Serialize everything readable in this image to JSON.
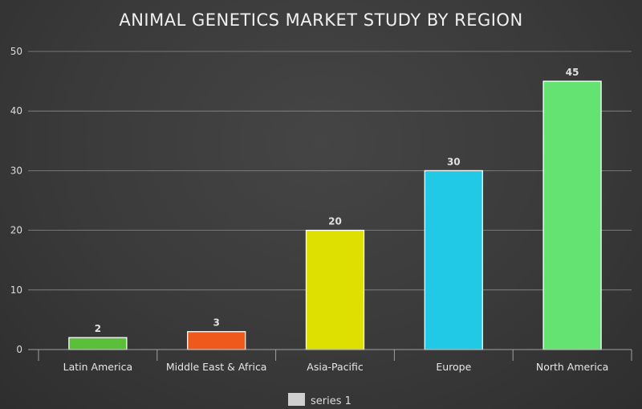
{
  "chart_data": {
    "type": "bar",
    "title": "ANIMAL GENETICS MARKET STUDY BY REGION",
    "categories": [
      "Latin America",
      "Middle East & Africa",
      "Asia-Pacific",
      "Europe",
      "North America"
    ],
    "series": [
      {
        "name": "series 1",
        "values": [
          2,
          3,
          20,
          30,
          45
        ],
        "colors": [
          "#5cbf3a",
          "#ef5a1c",
          "#dde000",
          "#22c9e6",
          "#64e372"
        ]
      }
    ],
    "ylim": [
      0,
      50
    ],
    "yticks": [
      0,
      10,
      20,
      30,
      40,
      50
    ],
    "grid": true,
    "legend_position": "bottom",
    "legend_swatch_color": "#cfcfcf",
    "data_labels": true
  }
}
